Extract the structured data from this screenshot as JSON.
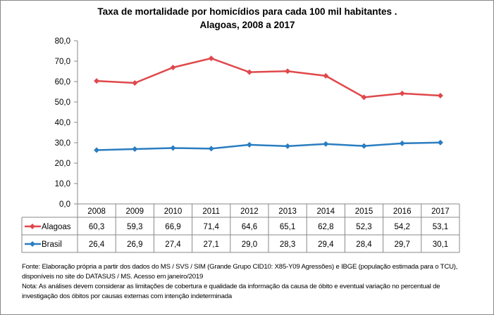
{
  "chart_data": {
    "type": "line",
    "title": "Taxa de mortalidade por homicídios para cada 100 mil habitantes .",
    "subtitle": "Alagoas, 2008 a 2017",
    "categories": [
      "2008",
      "2009",
      "2010",
      "2011",
      "2012",
      "2013",
      "2014",
      "2015",
      "2016",
      "2017"
    ],
    "series": [
      {
        "name": "Alagoas",
        "color": "#e0484b",
        "values": [
          60.3,
          59.3,
          66.9,
          71.4,
          64.6,
          65.1,
          62.8,
          52.3,
          54.2,
          53.1
        ],
        "labels": [
          "60,3",
          "59,3",
          "66,9",
          "71,4",
          "64,6",
          "65,1",
          "62,8",
          "52,3",
          "54,2",
          "53,1"
        ]
      },
      {
        "name": "Brasil",
        "color": "#2a7dc1",
        "values": [
          26.4,
          26.9,
          27.4,
          27.1,
          29.0,
          28.3,
          29.4,
          28.4,
          29.7,
          30.1
        ],
        "labels": [
          "26,4",
          "26,9",
          "27,4",
          "27,1",
          "29,0",
          "28,3",
          "29,4",
          "28,4",
          "29,7",
          "30,1"
        ]
      }
    ],
    "ylim": [
      0,
      80
    ],
    "yticks": [
      0,
      10,
      20,
      30,
      40,
      50,
      60,
      70,
      80
    ],
    "ytick_labels": [
      "0,0",
      "10,0",
      "20,0",
      "30,0",
      "40,0",
      "50,0",
      "60,0",
      "70,0",
      "80,0"
    ],
    "grid": false,
    "legend": "data-table"
  },
  "notes": [
    "Fonte: Elaboração própria a partir dos dados do MS / SVS / SIM (Grande Grupo CID10: X85-Y09 Agressões) e IBGE (população estimada para o TCU),",
    "disponíveis no site do DATASUS / MS. Acesso em janeiro/2019",
    "Nota:  As análises devem considerar as limitações de cobertura e qualidade da informação da causa de óbito e eventual variação no percentual de",
    "investigação dos óbitos  por causas externas com intenção  indeterminada"
  ]
}
